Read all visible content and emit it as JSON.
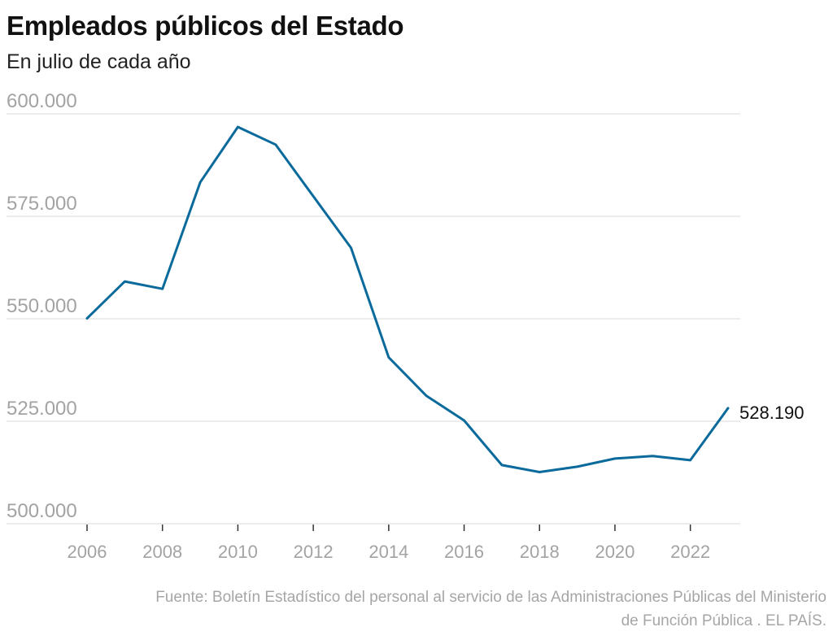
{
  "header": {
    "title": "Empleados públicos del Estado",
    "subtitle": "En julio de cada año"
  },
  "footer": {
    "line1": "Fuente: Boletín Estadístico del personal al servicio de las Administraciones Públicas del Ministerio",
    "line2": "de Función Pública . EL PAÍS."
  },
  "colors": {
    "line": "#0a6a9c",
    "grid": "#e6e6e6",
    "tick_text": "#a3a3a3"
  },
  "chart_data": {
    "type": "line",
    "title": "Empleados públicos del Estado",
    "subtitle": "En julio de cada año",
    "xlabel": "",
    "ylabel": "",
    "x": [
      2006,
      2007,
      2008,
      2009,
      2010,
      2011,
      2012,
      2013,
      2014,
      2015,
      2016,
      2017,
      2018,
      2019,
      2020,
      2021,
      2022,
      2023
    ],
    "series": [
      {
        "name": "Empleados públicos del Estado",
        "values": [
          550100,
          559100,
          557300,
          583300,
          596800,
          592500,
          579900,
          567300,
          540600,
          531200,
          525200,
          514300,
          512600,
          513900,
          515900,
          516500,
          515500,
          528190
        ]
      }
    ],
    "ylim": [
      500000,
      600000
    ],
    "xlim": [
      2006,
      2023
    ],
    "yticks": [
      500000,
      525000,
      550000,
      575000,
      600000
    ],
    "ytick_labels": [
      "500.000",
      "525.000",
      "550.000",
      "575.000",
      "600.000"
    ],
    "xticks": [
      2006,
      2008,
      2010,
      2012,
      2014,
      2016,
      2018,
      2020,
      2022
    ],
    "xtick_labels": [
      "2006",
      "2008",
      "2010",
      "2012",
      "2014",
      "2016",
      "2018",
      "2020",
      "2022"
    ],
    "annotations": [
      {
        "x": 2023,
        "text": "528.190"
      }
    ],
    "grid": true,
    "legend": "none"
  }
}
